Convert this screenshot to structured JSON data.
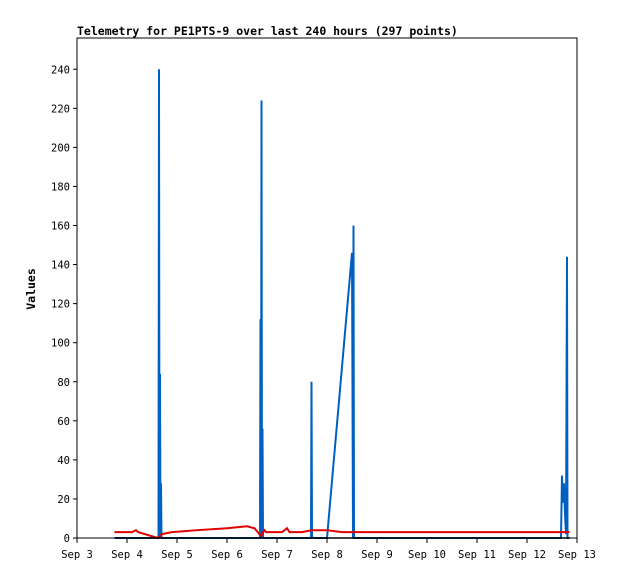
{
  "chart_data": {
    "type": "line",
    "title": "Telemetry for PE1PTS-9 over last 240 hours (297 points)",
    "xlabel": "",
    "ylabel": "Values",
    "x_tick_labels": [
      "Sep 3",
      "Sep 4",
      "Sep 5",
      "Sep 6",
      "Sep 7",
      "Sep 8",
      "Sep 9",
      "Sep 10",
      "Sep 11",
      "Sep 12",
      "Sep 13"
    ],
    "y_ticks": [
      0,
      20,
      40,
      60,
      80,
      100,
      120,
      140,
      160,
      180,
      200,
      220,
      240
    ],
    "xlim": [
      3.0,
      13.0
    ],
    "ylim": [
      0,
      256
    ],
    "grid": false,
    "legend": "none",
    "series": [
      {
        "color": "#0060c0",
        "points": [
          [
            3.75,
            0
          ],
          [
            4.55,
            0
          ],
          [
            4.63,
            0
          ],
          [
            4.64,
            240
          ],
          [
            4.65,
            0
          ],
          [
            4.66,
            84
          ],
          [
            4.67,
            0
          ],
          [
            4.68,
            28
          ],
          [
            4.69,
            0
          ],
          [
            6.6,
            0
          ],
          [
            6.66,
            0
          ],
          [
            6.67,
            112
          ],
          [
            6.68,
            0
          ],
          [
            6.69,
            224
          ],
          [
            6.7,
            0
          ],
          [
            6.71,
            56
          ],
          [
            6.72,
            0
          ],
          [
            7.68,
            0
          ],
          [
            7.69,
            80
          ],
          [
            7.7,
            0
          ],
          [
            8.0,
            0
          ],
          [
            8.5,
            146
          ],
          [
            8.52,
            0
          ],
          [
            8.53,
            160
          ],
          [
            8.54,
            0
          ],
          [
            12.68,
            0
          ],
          [
            12.7,
            32
          ],
          [
            12.72,
            18
          ],
          [
            12.74,
            28
          ],
          [
            12.76,
            12
          ],
          [
            12.78,
            2
          ],
          [
            12.8,
            144
          ],
          [
            12.81,
            0
          ],
          [
            12.85,
            0
          ]
        ]
      },
      {
        "color": "#e00000",
        "points": [
          [
            3.75,
            3
          ],
          [
            4.1,
            3
          ],
          [
            4.18,
            4
          ],
          [
            4.22,
            3
          ],
          [
            4.62,
            0
          ],
          [
            4.7,
            2
          ],
          [
            4.9,
            3
          ],
          [
            5.4,
            4
          ],
          [
            6.0,
            5
          ],
          [
            6.4,
            6
          ],
          [
            6.55,
            5
          ],
          [
            6.68,
            1
          ],
          [
            6.72,
            3
          ],
          [
            6.75,
            4
          ],
          [
            6.78,
            3
          ],
          [
            7.1,
            3
          ],
          [
            7.2,
            5
          ],
          [
            7.25,
            3
          ],
          [
            7.5,
            3
          ],
          [
            7.7,
            4
          ],
          [
            8.0,
            4
          ],
          [
            8.3,
            3
          ],
          [
            9.0,
            3
          ],
          [
            10.0,
            3
          ],
          [
            11.0,
            3
          ],
          [
            12.0,
            3
          ],
          [
            12.7,
            3
          ],
          [
            12.85,
            3
          ]
        ]
      },
      {
        "color": "#000000",
        "points": [
          [
            3.75,
            0
          ],
          [
            12.85,
            0
          ]
        ]
      }
    ]
  }
}
